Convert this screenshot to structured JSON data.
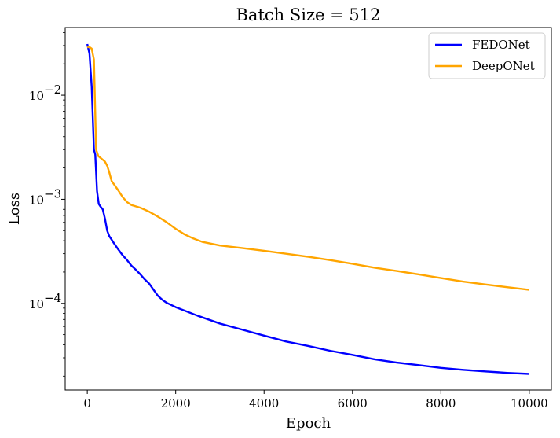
{
  "chart_data": {
    "type": "line",
    "title": "Batch Size = 512",
    "xlabel": "Epoch",
    "ylabel": "Loss",
    "xlim": [
      -500,
      10500
    ],
    "xticks": [
      0,
      2000,
      4000,
      6000,
      8000,
      10000
    ],
    "xtick_labels": [
      "0",
      "2000",
      "4000",
      "6000",
      "8000",
      "10000"
    ],
    "yscale": "log",
    "ylim": [
      1.47e-05,
      0.0447
    ],
    "yticks": [
      0.0001,
      0.001,
      0.01
    ],
    "ytick_labels": [
      {
        "base": "10",
        "exp": "−4"
      },
      {
        "base": "10",
        "exp": "−3"
      },
      {
        "base": "10",
        "exp": "−2"
      }
    ],
    "grid": false,
    "legend_position": "top-right",
    "series": [
      {
        "name": "FEDONet",
        "color": "#0000ff",
        "x": [
          0,
          50,
          100,
          150,
          180,
          220,
          260,
          300,
          350,
          400,
          450,
          500,
          550,
          600,
          700,
          800,
          900,
          1000,
          1100,
          1200,
          1300,
          1400,
          1500,
          1600,
          1700,
          1800,
          2000,
          2500,
          3000,
          3500,
          4000,
          4500,
          5000,
          5500,
          6000,
          6500,
          7000,
          7500,
          8000,
          8500,
          9000,
          9500,
          10000
        ],
        "y": [
          0.031,
          0.025,
          0.012,
          0.003,
          0.0027,
          0.0012,
          0.0009,
          0.00085,
          0.0008,
          0.00065,
          0.0005,
          0.00044,
          0.00041,
          0.00038,
          0.00033,
          0.00029,
          0.00026,
          0.00023,
          0.00021,
          0.00019,
          0.00017,
          0.000155,
          0.000135,
          0.000118,
          0.000108,
          0.000101,
          9.2e-05,
          7.6e-05,
          6.4e-05,
          5.6e-05,
          4.9e-05,
          4.3e-05,
          3.9e-05,
          3.5e-05,
          3.2e-05,
          2.9e-05,
          2.7e-05,
          2.55e-05,
          2.4e-05,
          2.3e-05,
          2.22e-05,
          2.15e-05,
          2.1e-05
        ]
      },
      {
        "name": "DeepONet",
        "color": "#ffa500",
        "x": [
          0,
          50,
          100,
          150,
          200,
          250,
          300,
          350,
          400,
          450,
          500,
          550,
          600,
          700,
          800,
          900,
          1000,
          1200,
          1400,
          1600,
          1800,
          2000,
          2200,
          2400,
          2600,
          3000,
          3500,
          4000,
          4500,
          5000,
          5500,
          6000,
          6500,
          7000,
          7500,
          8000,
          8500,
          9000,
          9500,
          10000
        ],
        "y": [
          0.029,
          0.029,
          0.028,
          0.022,
          0.003,
          0.0026,
          0.0025,
          0.0024,
          0.0023,
          0.0021,
          0.0018,
          0.0015,
          0.0014,
          0.00122,
          0.00105,
          0.00094,
          0.00088,
          0.00083,
          0.00076,
          0.00068,
          0.0006,
          0.00052,
          0.00046,
          0.00042,
          0.00039,
          0.00036,
          0.00034,
          0.00032,
          0.0003,
          0.00028,
          0.00026,
          0.00024,
          0.00022,
          0.000205,
          0.00019,
          0.000175,
          0.000162,
          0.000152,
          0.000143,
          0.000135
        ]
      }
    ]
  }
}
